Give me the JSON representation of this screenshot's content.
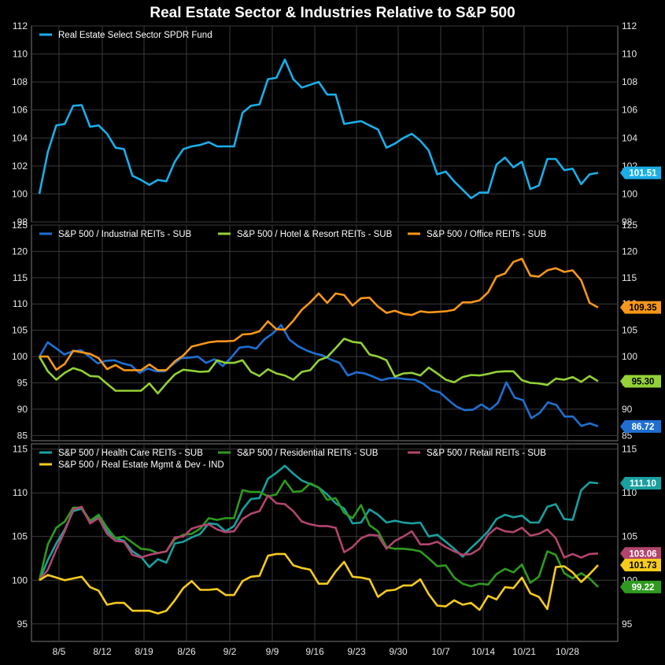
{
  "title": "Real Estate Sector & Industries Relative to S&P 500",
  "chart_data": {
    "type": "line",
    "x_tick_labels": [
      "8/5",
      "8/12",
      "8/19",
      "8/26",
      "9/2",
      "9/9",
      "9/16",
      "9/23",
      "9/30",
      "10/7",
      "10/14",
      "10/21",
      "10/28"
    ],
    "panels": [
      {
        "ylim": [
          98,
          112
        ],
        "yticks": [
          98,
          100,
          102,
          104,
          106,
          108,
          110,
          112
        ],
        "series": [
          {
            "name": "Real Estate Select Sector SPDR Fund",
            "color": "#1aaee8",
            "last_label": "101.51",
            "values": [
              100,
              103,
              104.9,
              105,
              106.3,
              106.35,
              104.8,
              104.9,
              104.3,
              103.3,
              103.2,
              101.3,
              101,
              100.65,
              101,
              100.9,
              102.3,
              103.2,
              103.4,
              103.5,
              103.7,
              103.4,
              103.4,
              103.4,
              105.8,
              106.3,
              106.4,
              108.2,
              108.3,
              109.6,
              108.2,
              107.6,
              107.8,
              108,
              107.1,
              107.1,
              105,
              105.1,
              105.2,
              104.9,
              104.6,
              103.3,
              103.6,
              104,
              104.3,
              103.8,
              103.1,
              101.4,
              101.6,
              100.9,
              100.3,
              99.7,
              100.1,
              100.1,
              102.1,
              102.6,
              101.9,
              102.3,
              100.35,
              100.6,
              102.5,
              102.5,
              101.7,
              101.8,
              100.7,
              101.4,
              101.51
            ]
          }
        ]
      },
      {
        "ylim": [
          84,
          125
        ],
        "yticks": [
          85,
          90,
          95,
          100,
          105,
          110,
          115,
          120,
          125
        ],
        "series": [
          {
            "name": "S&P 500 / Industrial REITs - SUB",
            "color": "#1f6fd1",
            "last_label": "86.72",
            "values": [
              100,
              102.7,
              101.6,
              100.4,
              101,
              101.2,
              100,
              98.7,
              99.2,
              99.3,
              98.7,
              98.3,
              96.9,
              97.7,
              97.2,
              97.2,
              98.5,
              99.7,
              99.8,
              100,
              98.8,
              99.5,
              98.2,
              99.8,
              101.7,
              101.9,
              101.5,
              103.3,
              104.4,
              106,
              103.2,
              102,
              101.2,
              100.6,
              100.2,
              99.4,
              98.8,
              96.4,
              97,
              96.8,
              96.2,
              95.5,
              95.9,
              95.9,
              95.7,
              95.6,
              94.9,
              93.6,
              93.2,
              91.8,
              90.5,
              89.8,
              89.9,
              90.9,
              89.9,
              91.2,
              95.1,
              92.2,
              91.7,
              88.3,
              89.3,
              91.3,
              90.8,
              88.6,
              88.6,
              86.8,
              87.3,
              86.72
            ]
          },
          {
            "name": "S&P 500 / Hotel & Resort REITs - SUB",
            "color": "#93d136",
            "last_label": "95.30",
            "values": [
              100,
              97.2,
              95.6,
              96.9,
              97.8,
              97.3,
              96.3,
              96.2,
              94.8,
              93.5,
              93.5,
              93.5,
              93.5,
              94.9,
              93,
              94.9,
              96.6,
              97.5,
              97.3,
              97.1,
              97.2,
              99.3,
              98.8,
              98.8,
              99.3,
              97.1,
              96.3,
              97.6,
              96.8,
              96.4,
              95.6,
              97.1,
              97.4,
              99.3,
              99.9,
              101.6,
              103.4,
              102.8,
              102.6,
              100.4,
              100,
              99.3,
              96.2,
              96.8,
              96.9,
              96.4,
              97.9,
              96.8,
              95.6,
              95.1,
              96.1,
              96.5,
              96.4,
              96.7,
              97.1,
              97.2,
              97.2,
              95.5,
              95,
              94.9,
              94.6,
              95.8,
              95.6,
              96.1,
              95.2,
              96.3,
              95.3
            ]
          },
          {
            "name": "S&P 500 / Office REITs - SUB",
            "color": "#f7961a",
            "last_label": "109.35",
            "values": [
              100,
              100,
              97.5,
              98.6,
              101.1,
              100.8,
              100.5,
              99.7,
              97.6,
              98.4,
              97.4,
              97.4,
              97.4,
              98.5,
              97.4,
              97.4,
              99.1,
              100.2,
              101.9,
              102.3,
              102.7,
              102.9,
              102.9,
              103,
              104.2,
              104.3,
              104.8,
              106.7,
              105.2,
              105.1,
              106.8,
              108.9,
              110.3,
              112,
              110.2,
              112,
              111.7,
              109.7,
              111.1,
              111.2,
              109.5,
              108.3,
              108.7,
              108.1,
              107.9,
              108.6,
              108.4,
              108.5,
              108.6,
              108.9,
              110.3,
              110.3,
              110.7,
              112.2,
              115.2,
              115.8,
              118,
              118.6,
              115.4,
              115.2,
              116.4,
              116.8,
              116.1,
              116.4,
              114.5,
              110.2,
              109.35
            ]
          }
        ]
      },
      {
        "ylim": [
          93,
          115.6
        ],
        "yticks": [
          95,
          100,
          105,
          110,
          115
        ],
        "series": [
          {
            "name": "S&P 500 / Health Care REITs - SUB",
            "color": "#19a0a0",
            "last_label": "111.10",
            "values": [
              100,
              102.3,
              104.2,
              105.8,
              107.9,
              108.2,
              106.6,
              107.4,
              105.6,
              104.8,
              104.5,
              103.3,
              102.7,
              101.5,
              102.4,
              102,
              104.2,
              104.4,
              104.9,
              105.3,
              106.5,
              106.4,
              105.6,
              106.2,
              108.1,
              109.3,
              109.4,
              111.6,
              112.3,
              113.1,
              112.2,
              111.4,
              111,
              110.6,
              109.8,
              108.8,
              108.2,
              106.5,
              106.6,
              108.1,
              107.5,
              106.6,
              106.8,
              106.6,
              106.5,
              106.6,
              105,
              105.2,
              104.4,
              103.6,
              102.7,
              103.7,
              104.6,
              105.6,
              107,
              107.5,
              107.2,
              107.4,
              106.6,
              106.6,
              108.4,
              108.7,
              107,
              106.9,
              110.3,
              111.2,
              111.1
            ]
          },
          {
            "name": "S&P 500 / Residential REITs - SUB",
            "color": "#2e9a1e",
            "last_label": "99.22",
            "values": [
              100,
              104.1,
              106,
              106.7,
              108.3,
              108.3,
              106.8,
              107.5,
              106,
              104.8,
              105,
              104.3,
              103.6,
              103.5,
              103.1,
              103.3,
              104.7,
              105.2,
              105.3,
              105.9,
              107.1,
              106.9,
              107.1,
              107.1,
              110.3,
              110.1,
              110.1,
              109.6,
              109.8,
              111.4,
              110.1,
              110.2,
              111.1,
              110.6,
              109.2,
              109.4,
              107.7,
              107.1,
              108.6,
              106.3,
              105.6,
              103.8,
              103.6,
              103.6,
              103.5,
              103.3,
              102.5,
              101.6,
              101.7,
              100.3,
              99.6,
              99.3,
              99.6,
              99.5,
              100.7,
              101.3,
              100.9,
              101.8,
              99.7,
              100.4,
              103.3,
              102.9,
              100.8,
              100.2,
              100.8,
              100.2,
              99.22
            ]
          },
          {
            "name": "S&P 500 / Retail REITs - SUB",
            "color": "#b2456e",
            "last_label": "103.06",
            "values": [
              100,
              101.2,
              103.5,
              105.6,
              108.1,
              108.4,
              106.5,
              107.1,
              105.3,
              104.5,
              104.4,
              102.9,
              102.6,
              102.9,
              103.1,
              103.3,
              104.9,
              105,
              105.9,
              106.2,
              106.4,
              105.8,
              105.5,
              105.6,
              107,
              107.6,
              107.9,
              109.7,
              108.8,
              108.7,
              107.9,
              106.7,
              106.4,
              106.2,
              106.2,
              106,
              103.2,
              103.8,
              104.8,
              105.2,
              105.1,
              103.6,
              104.5,
              105,
              105.6,
              104.1,
              104.1,
              104.4,
              103.8,
              103.3,
              102.9,
              103,
              103.6,
              105.2,
              106,
              105.6,
              105.5,
              106,
              105.1,
              105.3,
              105.8,
              104.8,
              102.6,
              103,
              102.6,
              103,
              103.06
            ]
          },
          {
            "name": "S&P 500 / Real Estate Mgmt & Dev - IND",
            "color": "#f6cb1d",
            "last_label": "101.73",
            "values": [
              100,
              100.6,
              100.3,
              100,
              100.2,
              100.4,
              99.2,
              98.8,
              97.2,
              97.4,
              97.4,
              96.5,
              96.5,
              96.5,
              96.2,
              96.5,
              97.7,
              99.1,
              99.9,
              98.9,
              98.9,
              99,
              98.3,
              98.3,
              99.9,
              100.4,
              100.5,
              102.8,
              103,
              103,
              101.7,
              101.4,
              101.2,
              99.6,
              99.6,
              101,
              102.1,
              100.4,
              100.3,
              100.1,
              98.1,
              98.8,
              98.9,
              99.4,
              99.4,
              100.1,
              98.4,
              97.1,
              97,
              97.7,
              97.2,
              97.4,
              96.6,
              98.2,
              97.8,
              99.2,
              99.1,
              100.3,
              98.5,
              98.1,
              96.7,
              101.5,
              101.6,
              100.9,
              99.8,
              100.7,
              101.73
            ]
          }
        ]
      }
    ]
  }
}
